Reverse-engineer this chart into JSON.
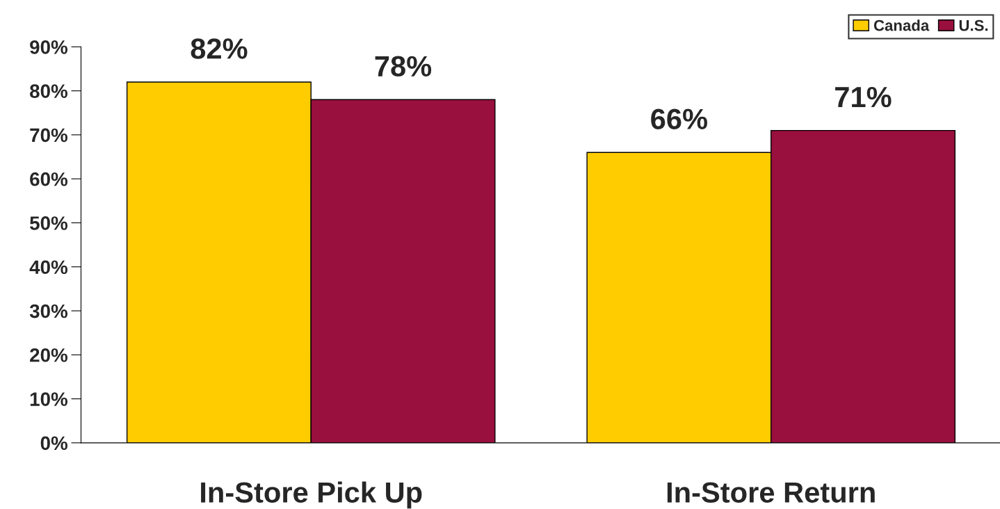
{
  "chart_data": {
    "type": "bar",
    "categories": [
      "In-Store Pick Up",
      "In-Store Return"
    ],
    "series": [
      {
        "name": "Canada",
        "color": "#ffcc00",
        "values": [
          82,
          66
        ],
        "value_labels": [
          "82%",
          "66%"
        ]
      },
      {
        "name": "U.S.",
        "color": "#990f3d",
        "values": [
          78,
          71
        ],
        "value_labels": [
          "78%",
          "71%"
        ]
      }
    ],
    "ylim": [
      0,
      90
    ],
    "yticks": [
      {
        "value": 0,
        "label": "0%"
      },
      {
        "value": 10,
        "label": "10%"
      },
      {
        "value": 20,
        "label": "20%"
      },
      {
        "value": 30,
        "label": "30%"
      },
      {
        "value": 40,
        "label": "40%"
      },
      {
        "value": 50,
        "label": "50%"
      },
      {
        "value": 60,
        "label": "60%"
      },
      {
        "value": 70,
        "label": "70%"
      },
      {
        "value": 80,
        "label": "80%"
      },
      {
        "value": 90,
        "label": "90%"
      }
    ],
    "grid": false,
    "legend": "top right"
  }
}
